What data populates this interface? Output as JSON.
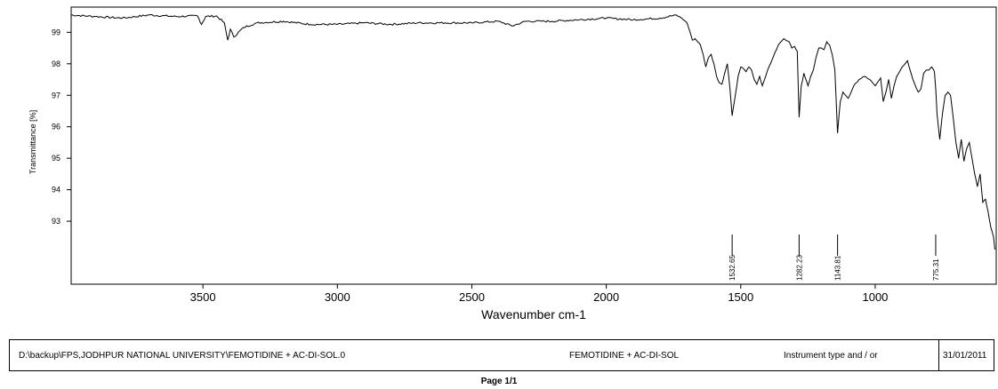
{
  "chart_data": {
    "type": "line",
    "title": "",
    "xlabel": "Wavenumber cm-1",
    "ylabel": "Transmittance [%]",
    "xlim": [
      3990,
      550
    ],
    "ylim": [
      91,
      99.8
    ],
    "x_ticks": [
      "3500",
      "3000",
      "2500",
      "2000",
      "1500",
      "1000"
    ],
    "y_ticks": [
      "99",
      "98",
      "97",
      "96",
      "95",
      "94",
      "93"
    ],
    "series": [
      {
        "x": [
          3990,
          3900,
          3800,
          3700,
          3600,
          3520,
          3505,
          3490,
          3450,
          3420,
          3408,
          3398,
          3385,
          3350,
          3300,
          3200,
          3100,
          3000,
          2900,
          2800,
          2700,
          2600,
          2500,
          2400,
          2350,
          2300,
          2200,
          2100,
          2000,
          1900,
          1800,
          1740,
          1720,
          1700,
          1690,
          1680,
          1670,
          1660,
          1650,
          1640,
          1630,
          1620,
          1610,
          1600,
          1590,
          1580,
          1570,
          1560,
          1550,
          1540,
          1532,
          1520,
          1510,
          1500,
          1490,
          1480,
          1470,
          1460,
          1450,
          1440,
          1430,
          1420,
          1400,
          1380,
          1360,
          1340,
          1320,
          1310,
          1300,
          1290,
          1283,
          1275,
          1265,
          1250,
          1240,
          1230,
          1220,
          1210,
          1200,
          1190,
          1180,
          1170,
          1160,
          1150,
          1140,
          1130,
          1120,
          1110,
          1100,
          1080,
          1060,
          1040,
          1020,
          1000,
          980,
          970,
          960,
          950,
          940,
          930,
          920,
          900,
          880,
          860,
          840,
          830,
          820,
          810,
          800,
          790,
          780,
          775,
          770,
          760,
          750,
          740,
          730,
          720,
          710,
          700,
          690,
          680,
          670,
          660,
          650,
          640,
          630,
          620,
          610,
          600,
          590,
          580,
          570,
          560,
          555
        ],
        "y": [
          99.55,
          99.5,
          99.45,
          99.55,
          99.5,
          99.52,
          99.25,
          99.5,
          99.52,
          99.3,
          98.75,
          99.1,
          98.85,
          99.15,
          99.3,
          99.35,
          99.25,
          99.25,
          99.3,
          99.25,
          99.3,
          99.3,
          99.3,
          99.35,
          99.2,
          99.35,
          99.35,
          99.4,
          99.45,
          99.4,
          99.45,
          99.55,
          99.45,
          99.3,
          99.05,
          98.75,
          98.8,
          98.7,
          98.6,
          98.3,
          97.9,
          98.2,
          98.3,
          98.0,
          97.6,
          97.4,
          97.35,
          97.7,
          98.0,
          97.2,
          96.35,
          97.0,
          97.6,
          97.9,
          97.85,
          97.75,
          97.9,
          97.8,
          97.5,
          97.35,
          97.6,
          97.3,
          97.8,
          98.2,
          98.6,
          98.8,
          98.7,
          98.5,
          98.55,
          98.4,
          96.3,
          97.3,
          97.7,
          97.3,
          97.6,
          97.8,
          98.2,
          98.5,
          98.5,
          98.45,
          98.7,
          98.6,
          98.3,
          97.8,
          95.8,
          96.8,
          97.1,
          97.0,
          96.9,
          97.3,
          97.5,
          97.6,
          97.5,
          97.3,
          97.55,
          96.8,
          97.1,
          97.5,
          96.9,
          97.3,
          97.6,
          97.9,
          98.1,
          97.5,
          97.1,
          97.2,
          97.7,
          97.8,
          97.8,
          97.9,
          97.75,
          97.2,
          96.4,
          95.6,
          96.4,
          97.0,
          97.1,
          97.0,
          96.3,
          95.5,
          95.0,
          95.6,
          94.9,
          95.3,
          95.5,
          95.0,
          94.5,
          94.1,
          94.5,
          93.6,
          93.7,
          93.3,
          92.8,
          92.5,
          92.1
        ]
      }
    ],
    "peak_labels": [
      {
        "x": 1532,
        "text": "1532.65"
      },
      {
        "x": 1283,
        "text": "1282.23"
      },
      {
        "x": 1140,
        "text": "1143.81"
      },
      {
        "x": 775,
        "text": "775.31"
      }
    ]
  },
  "info": {
    "path": "D:\\backup\\FPS,JODHPUR NATIONAL UNIVERSITY\\FEMOTIDINE + AC-DI-SOL.0",
    "sample": "FEMOTIDINE + AC-DI-SOL",
    "instrument": "Instrument type and / or",
    "date": "31/01/2011"
  },
  "footer": {
    "page": "Page 1/1"
  }
}
